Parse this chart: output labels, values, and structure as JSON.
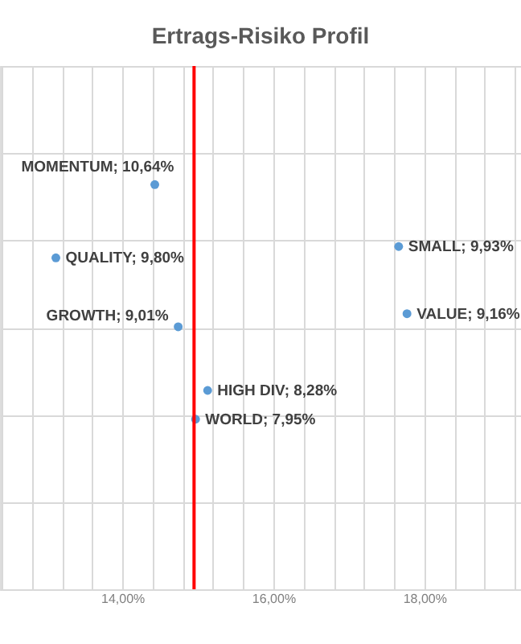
{
  "chart_data": {
    "type": "scatter",
    "title": "Ertrags-Risiko Profil",
    "x": [
      14.43,
      13.12,
      17.66,
      17.77,
      14.74,
      15.13,
      14.97
    ],
    "series": [
      {
        "color": "#5b9bd5",
        "values": [
          10.64,
          9.8,
          9.93,
          9.16,
          9.01,
          8.28,
          7.95
        ],
        "value_labels": [
          "MOMENTUM; 10,64%",
          "QUALITY; 9,80%",
          "SMALL; 9,93%",
          "VALUE; 9,16%",
          "GROWTH; 9,01%",
          "HIGH DIV; 8,28%",
          "WORLD; 7,95%"
        ]
      }
    ],
    "xlim": [
      12.38,
      19.28
    ],
    "ylim": [
      6,
      12
    ],
    "xticks": [
      {
        "value": 12.4,
        "label": null
      },
      {
        "value": 12.8,
        "label": null
      },
      {
        "value": 13.2,
        "label": null
      },
      {
        "value": 13.6,
        "label": null
      },
      {
        "value": 14.0,
        "label": "14,00%"
      },
      {
        "value": 14.4,
        "label": null
      },
      {
        "value": 14.8,
        "label": null
      },
      {
        "value": 15.2,
        "label": null
      },
      {
        "value": 15.6,
        "label": null
      },
      {
        "value": 16.0,
        "label": "16,00%"
      },
      {
        "value": 16.4,
        "label": null
      },
      {
        "value": 16.8,
        "label": null
      },
      {
        "value": 17.2,
        "label": null
      },
      {
        "value": 17.6,
        "label": null
      },
      {
        "value": 18.0,
        "label": "18,00%"
      },
      {
        "value": 18.4,
        "label": null
      },
      {
        "value": 18.8,
        "label": null
      },
      {
        "value": 19.2,
        "label": null
      }
    ],
    "yticks": [
      {
        "value": 6,
        "label": null
      },
      {
        "value": 7,
        "label": null
      },
      {
        "value": 8,
        "label": null
      },
      {
        "value": 9,
        "label": null
      },
      {
        "value": 10,
        "label": null
      },
      {
        "value": 11,
        "label": null
      },
      {
        "value": 12,
        "label": null
      }
    ],
    "ref_lines": [
      {
        "axis": "x",
        "value": 14.95,
        "color": "#ff0000"
      }
    ],
    "grid": true,
    "tick_labels": "x",
    "marker": "circle"
  }
}
